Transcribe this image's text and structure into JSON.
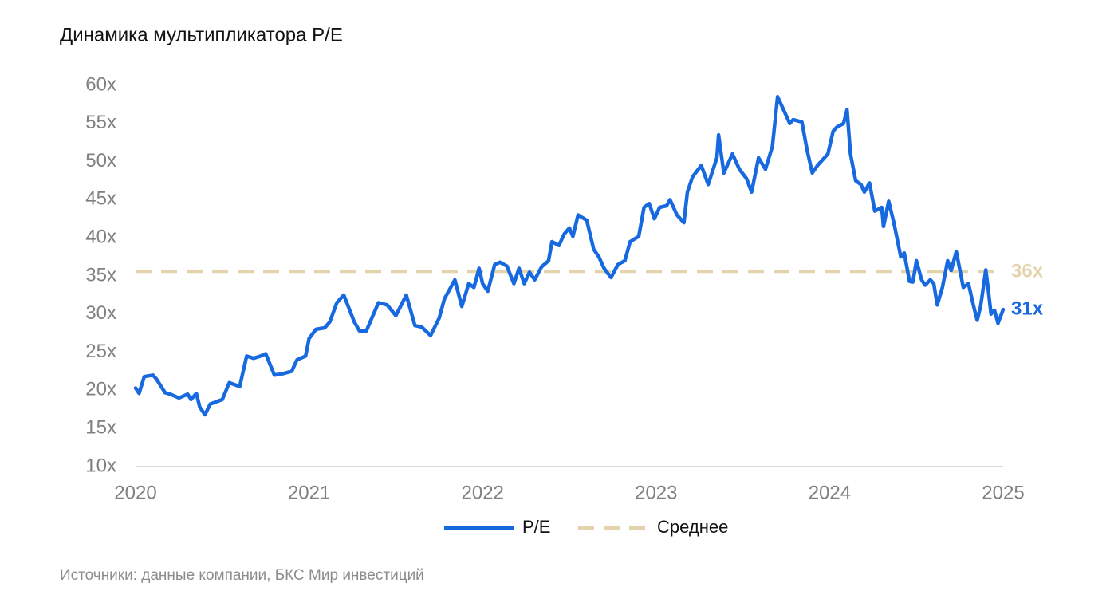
{
  "chart_data": {
    "type": "line",
    "title": "Динамика мультипликатора P/E",
    "source": "Источники: данные компании, БКС Мир инвестиций",
    "xlim": [
      2020,
      2025
    ],
    "xticks": [
      2020,
      2021,
      2022,
      2023,
      2024,
      2025
    ],
    "ylim": [
      10,
      60
    ],
    "yticks": [
      {
        "value": 10,
        "label": "10x"
      },
      {
        "value": 15,
        "label": "15x"
      },
      {
        "value": 20,
        "label": "20x"
      },
      {
        "value": 25,
        "label": "25x"
      },
      {
        "value": 30,
        "label": "30x"
      },
      {
        "value": 35,
        "label": "35x"
      },
      {
        "value": 40,
        "label": "40x"
      },
      {
        "value": 45,
        "label": "45x"
      },
      {
        "value": 50,
        "label": "50x"
      },
      {
        "value": 55,
        "label": "55x"
      },
      {
        "value": 60,
        "label": "60x"
      }
    ],
    "grid": false,
    "legend": "bottom",
    "series": [
      {
        "name": "P/E",
        "color": "#1769e0",
        "last_label": "31x",
        "x": [
          2020,
          2020.02,
          2020.05,
          2020.1,
          2020.12,
          2020.17,
          2020.2,
          2020.25,
          2020.3,
          2020.32,
          2020.35,
          2020.37,
          2020.4,
          2020.43,
          2020.5,
          2020.54,
          2020.6,
          2020.64,
          2020.68,
          2020.72,
          2020.75,
          2020.8,
          2020.85,
          2020.9,
          2020.93,
          2020.98,
          2021,
          2021.04,
          2021.09,
          2021.12,
          2021.16,
          2021.2,
          2021.26,
          2021.29,
          2021.33,
          2021.4,
          2021.45,
          2021.5,
          2021.56,
          2021.61,
          2021.65,
          2021.7,
          2021.75,
          2021.78,
          2021.84,
          2021.88,
          2021.92,
          2021.95,
          2021.98,
          2022,
          2022.03,
          2022.07,
          2022.1,
          2022.14,
          2022.18,
          2022.21,
          2022.24,
          2022.27,
          2022.3,
          2022.34,
          2022.38,
          2022.4,
          2022.44,
          2022.47,
          2022.5,
          2022.52,
          2022.55,
          2022.6,
          2022.64,
          2022.67,
          2022.7,
          2022.74,
          2022.78,
          2022.82,
          2022.85,
          2022.9,
          2022.93,
          2022.96,
          2022.99,
          2023.02,
          2023.06,
          2023.08,
          2023.12,
          2023.16,
          2023.18,
          2023.21,
          2023.26,
          2023.3,
          2023.35,
          2023.36,
          2023.39,
          2023.44,
          2023.48,
          2023.52,
          2023.55,
          2023.59,
          2023.63,
          2023.67,
          2023.7,
          2023.72,
          2023.77,
          2023.79,
          2023.84,
          2023.87,
          2023.9,
          2023.93,
          2023.95,
          2023.99,
          2024.02,
          2024.04,
          2024.08,
          2024.1,
          2024.12,
          2024.15,
          2024.18,
          2024.2,
          2024.23,
          2024.26,
          2024.3,
          2024.31,
          2024.34,
          2024.37,
          2024.41,
          2024.43,
          2024.46,
          2024.48,
          2024.5,
          2024.53,
          2024.55,
          2024.58,
          2024.6,
          2024.62,
          2024.65,
          2024.68,
          2024.7,
          2024.73,
          2024.77,
          2024.8,
          2024.83,
          2024.85,
          2024.87,
          2024.9,
          2024.91,
          2024.93,
          2024.95,
          2024.97,
          2025
        ],
        "values": [
          20.3,
          19.6,
          21.8,
          22,
          21.5,
          19.7,
          19.5,
          19,
          19.5,
          18.8,
          19.6,
          17.8,
          16.8,
          18.2,
          18.8,
          21,
          20.5,
          24.5,
          24.2,
          24.5,
          24.8,
          22,
          22.2,
          22.5,
          24,
          24.5,
          26.8,
          28,
          28.2,
          29,
          31.5,
          32.5,
          29,
          27.8,
          27.8,
          31.5,
          31.2,
          29.8,
          32.5,
          28.5,
          28.3,
          27.2,
          29.5,
          32,
          34.5,
          31,
          34,
          33.5,
          36,
          34,
          33,
          36.5,
          36.8,
          36.3,
          34,
          36,
          34,
          35.5,
          34.5,
          36.2,
          37,
          39.5,
          39,
          40.5,
          41.3,
          40.2,
          43,
          42.3,
          38.5,
          37.5,
          36,
          34.8,
          36.5,
          37,
          39.5,
          40.2,
          44,
          44.5,
          42.5,
          44,
          44.2,
          45,
          43,
          42,
          46,
          48,
          49.5,
          47,
          50.5,
          53.5,
          48.5,
          51,
          49,
          47.8,
          46,
          50.5,
          49,
          52,
          58.5,
          57.5,
          55,
          55.5,
          55.2,
          51.5,
          48.5,
          49.5,
          50,
          51,
          54,
          54.5,
          55,
          56.8,
          51,
          47.5,
          47,
          46,
          47.2,
          43.5,
          44,
          41.5,
          44.8,
          42,
          37.5,
          38,
          34.3,
          34.2,
          37,
          34.5,
          33.8,
          34.5,
          34,
          31.2,
          33.5,
          37,
          35.7,
          38.2,
          33.5,
          34,
          31,
          29.2,
          31,
          35.8,
          34,
          30,
          30.5,
          28.8,
          30.6
        ]
      }
    ],
    "mean_line": {
      "name": "Среднее",
      "color": "#e3d4ad",
      "value": 35.6,
      "label": "36x"
    }
  }
}
